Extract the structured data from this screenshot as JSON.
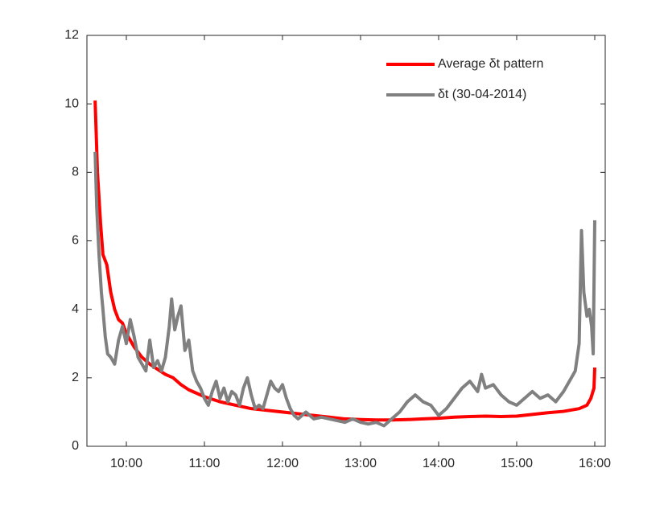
{
  "chart_data": {
    "type": "line",
    "xlim": [
      9.495,
      16.134
    ],
    "ylim": [
      0,
      12
    ],
    "xticks": [
      {
        "value": 10,
        "label": "10:00"
      },
      {
        "value": 11,
        "label": "11:00"
      },
      {
        "value": 12,
        "label": "12:00"
      },
      {
        "value": 13,
        "label": "13:00"
      },
      {
        "value": 14,
        "label": "14:00"
      },
      {
        "value": 15,
        "label": "15:00"
      },
      {
        "value": 16,
        "label": "16:00"
      }
    ],
    "yticks": [
      0,
      2,
      4,
      6,
      8,
      10,
      12
    ],
    "legend": "upper right",
    "series": [
      {
        "name": "Average δt pattern",
        "color": "#ff0000",
        "x": [
          9.6,
          9.63,
          9.67,
          9.7,
          9.75,
          9.8,
          9.85,
          9.9,
          9.95,
          10.0,
          10.1,
          10.2,
          10.3,
          10.4,
          10.5,
          10.6,
          10.7,
          10.8,
          10.9,
          11.0,
          11.2,
          11.4,
          11.6,
          11.8,
          12.0,
          12.2,
          12.4,
          12.6,
          12.8,
          13.0,
          13.2,
          13.4,
          13.6,
          13.8,
          14.0,
          14.2,
          14.4,
          14.6,
          14.8,
          15.0,
          15.2,
          15.4,
          15.6,
          15.8,
          15.9,
          15.95,
          15.99,
          16.0
        ],
        "values": [
          10.1,
          8,
          6.5,
          5.6,
          5.3,
          4.5,
          4.0,
          3.7,
          3.6,
          3.3,
          2.9,
          2.6,
          2.4,
          2.25,
          2.1,
          2.0,
          1.8,
          1.65,
          1.55,
          1.45,
          1.3,
          1.2,
          1.1,
          1.05,
          1.0,
          0.95,
          0.9,
          0.85,
          0.8,
          0.78,
          0.77,
          0.77,
          0.78,
          0.8,
          0.82,
          0.85,
          0.87,
          0.88,
          0.87,
          0.88,
          0.93,
          0.98,
          1.02,
          1.1,
          1.2,
          1.4,
          1.7,
          2.3
        ]
      },
      {
        "name": "δt (30-04-2014)",
        "color": "#808080",
        "x": [
          9.6,
          9.62,
          9.65,
          9.68,
          9.7,
          9.73,
          9.76,
          9.8,
          9.85,
          9.9,
          9.95,
          10.0,
          10.05,
          10.1,
          10.15,
          10.2,
          10.25,
          10.3,
          10.35,
          10.4,
          10.45,
          10.5,
          10.55,
          10.58,
          10.62,
          10.66,
          10.7,
          10.75,
          10.8,
          10.85,
          10.9,
          10.95,
          11.0,
          11.05,
          11.1,
          11.15,
          11.2,
          11.25,
          11.3,
          11.35,
          11.4,
          11.45,
          11.5,
          11.55,
          11.6,
          11.65,
          11.7,
          11.75,
          11.8,
          11.85,
          11.9,
          11.95,
          12.0,
          12.05,
          12.1,
          12.15,
          12.2,
          12.3,
          12.4,
          12.5,
          12.6,
          12.7,
          12.8,
          12.9,
          13.0,
          13.1,
          13.2,
          13.3,
          13.4,
          13.5,
          13.6,
          13.7,
          13.8,
          13.9,
          14.0,
          14.1,
          14.2,
          14.3,
          14.4,
          14.5,
          14.55,
          14.6,
          14.7,
          14.8,
          14.9,
          15.0,
          15.1,
          15.2,
          15.3,
          15.4,
          15.5,
          15.6,
          15.7,
          15.75,
          15.8,
          15.83,
          15.86,
          15.9,
          15.93,
          15.96,
          15.98,
          16.0
        ],
        "values": [
          8.6,
          7,
          5.6,
          4.5,
          4,
          3.2,
          2.7,
          2.6,
          2.4,
          3.1,
          3.5,
          3.0,
          3.7,
          3.2,
          2.6,
          2.4,
          2.2,
          3.1,
          2.3,
          2.5,
          2.2,
          2.6,
          3.5,
          4.3,
          3.4,
          3.8,
          4.1,
          2.8,
          3.1,
          2.2,
          1.9,
          1.7,
          1.4,
          1.2,
          1.6,
          1.9,
          1.4,
          1.7,
          1.3,
          1.6,
          1.5,
          1.2,
          1.7,
          2.0,
          1.5,
          1.1,
          1.2,
          1.1,
          1.5,
          1.9,
          1.7,
          1.6,
          1.8,
          1.4,
          1.1,
          0.9,
          0.8,
          1.0,
          0.8,
          0.85,
          0.8,
          0.75,
          0.7,
          0.8,
          0.7,
          0.65,
          0.7,
          0.6,
          0.8,
          1.0,
          1.3,
          1.5,
          1.3,
          1.2,
          0.9,
          1.1,
          1.4,
          1.7,
          1.9,
          1.6,
          2.1,
          1.7,
          1.8,
          1.5,
          1.3,
          1.2,
          1.4,
          1.6,
          1.4,
          1.5,
          1.3,
          1.6,
          2.0,
          2.2,
          3.0,
          6.3,
          4.5,
          3.8,
          4.0,
          3.5,
          2.7,
          6.6
        ]
      }
    ]
  }
}
